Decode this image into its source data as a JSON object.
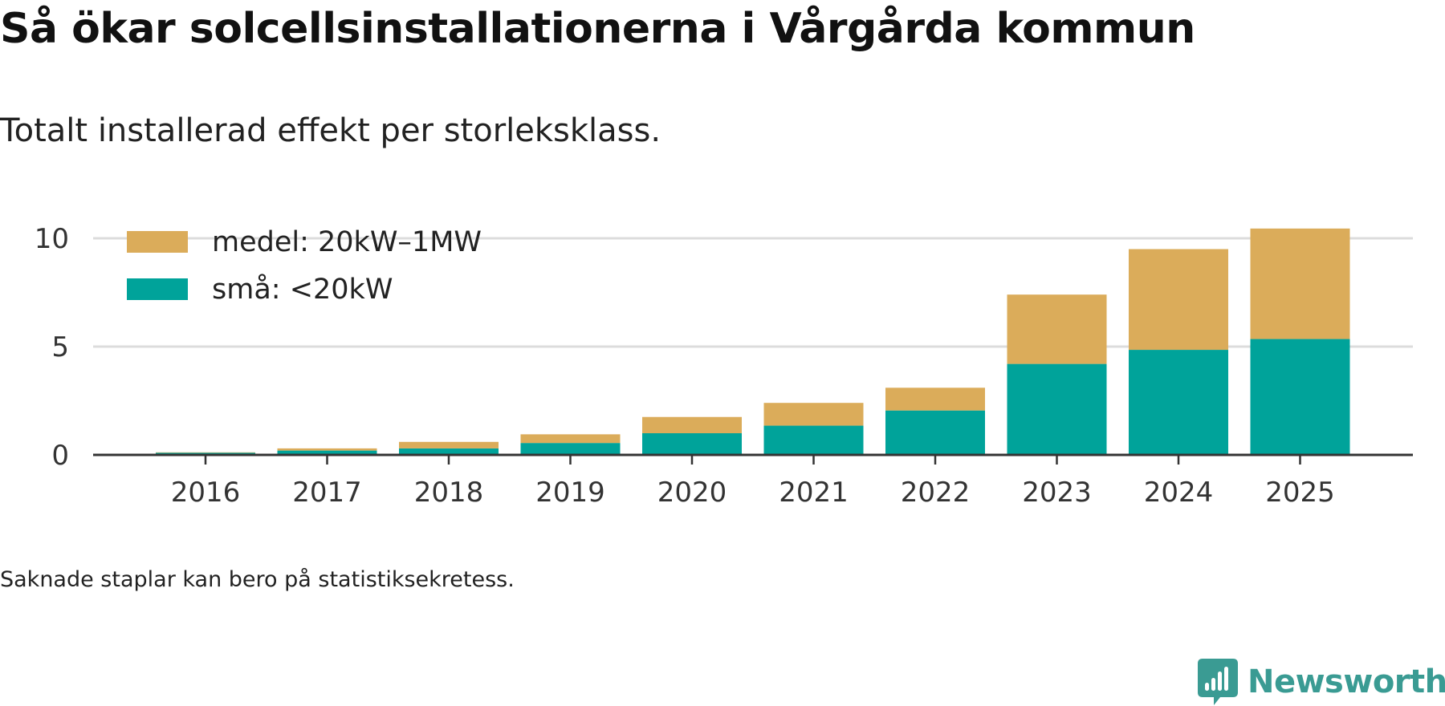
{
  "title": "Så ökar solcellsinstallationerna i Vårgårda kommun",
  "subtitle": "Totalt installerad effekt per storleksklass.",
  "note": "Saknade staplar kan bero på statistiksekretess.",
  "brand": {
    "name": "Newsworthy",
    "icon": "newsworthy-logo-icon",
    "color": "#3a9b93"
  },
  "chart_data": {
    "type": "bar",
    "stacked": true,
    "title": "Så ökar solcellsinstallationerna i Vårgårda kommun",
    "subtitle": "Totalt installerad effekt per storleksklass.",
    "xlabel": "",
    "ylabel": "",
    "categories": [
      "2016",
      "2017",
      "2018",
      "2019",
      "2020",
      "2021",
      "2022",
      "2023",
      "2024",
      "2025"
    ],
    "series": [
      {
        "name": "små: <20kW",
        "color": "#00a39a",
        "values": [
          0.1,
          0.2,
          0.3,
          0.55,
          1.0,
          1.35,
          2.05,
          4.2,
          4.85,
          5.35
        ]
      },
      {
        "name": "medel: 20kW–1MW",
        "color": "#dbac5a",
        "values": [
          0.02,
          0.1,
          0.3,
          0.4,
          0.75,
          1.05,
          1.05,
          3.2,
          4.65,
          5.1
        ]
      }
    ],
    "ylim": [
      0,
      10.5
    ],
    "yticks": [
      0,
      5,
      10
    ],
    "ytick_labels": [
      "0",
      "5",
      "10"
    ],
    "grid": true,
    "legend_position": "top-left",
    "legend_order": [
      "medel: 20kW–1MW",
      "små: <20kW"
    ]
  }
}
